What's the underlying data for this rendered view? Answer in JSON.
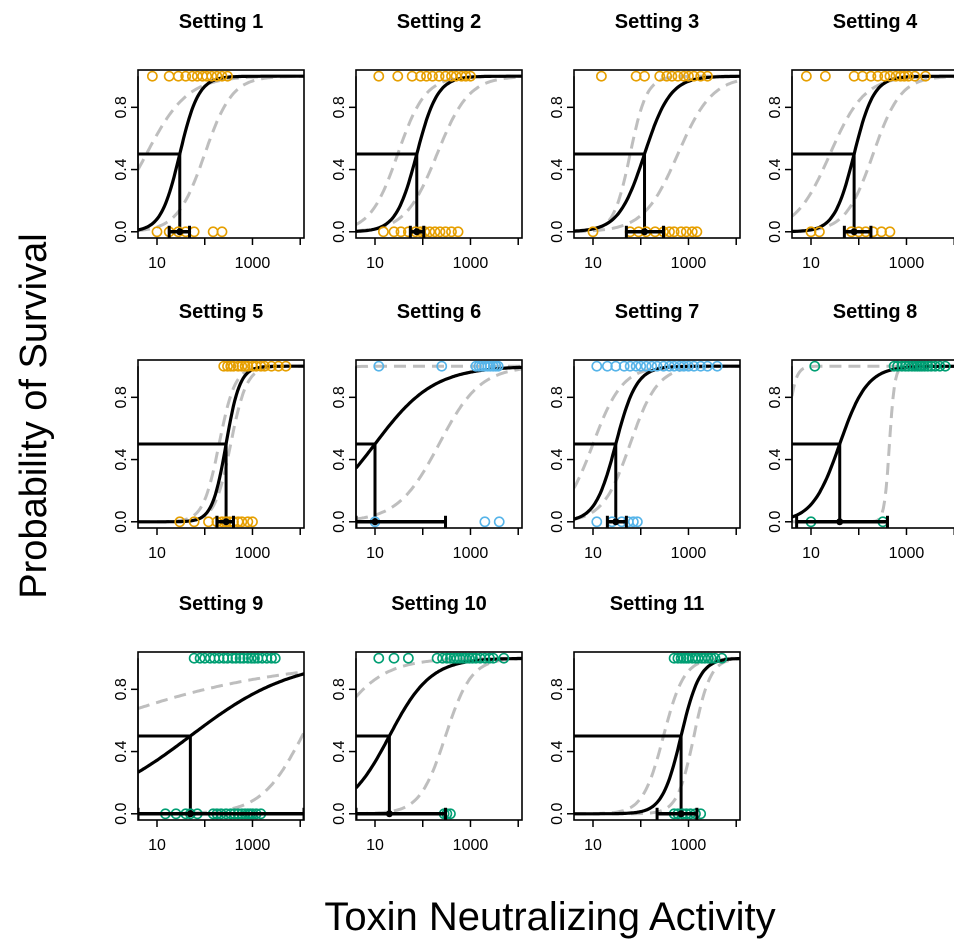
{
  "figure": {
    "ylabel": "Probability of Survival",
    "xlabel": "Toxin Neutralizing Activity"
  },
  "colors": {
    "orange": "#E69F00",
    "blue": "#56B4E9",
    "green": "#009E73",
    "fit": "#000000",
    "ci": "#BEBEBE"
  },
  "chart_data": {
    "type": "scatter",
    "x_scale": "log10",
    "xlim": [
      4,
      12000
    ],
    "ylim": [
      -0.04,
      1.04
    ],
    "x_ticks": [
      10,
      1000
    ],
    "x_tick_labels": [
      "10",
      "1000"
    ],
    "y_ticks": [
      0,
      0.4,
      0.8
    ],
    "y_tick_labels": [
      "0.0",
      "0.4",
      "0.8"
    ],
    "panels": [
      {
        "title": "Setting 1",
        "color": "orange",
        "fit": {
          "ld50": 30,
          "slope": 2.2
        },
        "ci_lower": {
          "ld50": 100,
          "slope": 1.5
        },
        "ci_upper": {
          "ld50": 6,
          "slope": 1.0
        },
        "ld50_ci": [
          18,
          48
        ],
        "survived_x": [
          8,
          18,
          28,
          40,
          55,
          70,
          90,
          110,
          140,
          180,
          230,
          300
        ],
        "died_x": [
          10,
          18,
          28,
          40,
          60,
          150,
          230
        ]
      },
      {
        "title": "Setting 2",
        "color": "orange",
        "fit": {
          "ld50": 75,
          "slope": 2.0
        },
        "ci_lower": {
          "ld50": 200,
          "slope": 1.3
        },
        "ci_upper": {
          "ld50": 30,
          "slope": 1.5
        },
        "ld50_ci": [
          55,
          105
        ],
        "survived_x": [
          12,
          30,
          60,
          90,
          120,
          160,
          220,
          300,
          400,
          500,
          650,
          800,
          1000
        ],
        "died_x": [
          15,
          25,
          35,
          50,
          70,
          90,
          110,
          140,
          180,
          230,
          300,
          400,
          550
        ]
      },
      {
        "title": "Setting 3",
        "color": "orange",
        "fit": {
          "ld50": 120,
          "slope": 1.6
        },
        "ci_lower": {
          "ld50": 600,
          "slope": 1.2
        },
        "ci_upper": {
          "ld50": 60,
          "slope": 2.5
        },
        "ld50_ci": [
          50,
          300
        ],
        "survived_x": [
          15,
          80,
          120,
          250,
          350,
          450,
          600,
          800,
          1000,
          1300,
          1800,
          2500
        ],
        "died_x": [
          10,
          60,
          90,
          130,
          200,
          300,
          400,
          500,
          700,
          900,
          1200,
          1500
        ]
      },
      {
        "title": "Setting 4",
        "color": "orange",
        "fit": {
          "ld50": 80,
          "slope": 2.1
        },
        "ci_lower": {
          "ld50": 200,
          "slope": 1.5
        },
        "ci_upper": {
          "ld50": 25,
          "slope": 1.2
        },
        "ld50_ci": [
          50,
          180
        ],
        "survived_x": [
          8,
          20,
          80,
          120,
          180,
          250,
          350,
          450,
          600,
          750,
          900,
          1100,
          1500,
          2500
        ],
        "died_x": [
          10,
          15,
          70,
          100,
          140,
          200,
          300,
          450
        ]
      },
      {
        "title": "Setting 5",
        "color": "orange",
        "fit": {
          "ld50": 280,
          "slope": 3.0
        },
        "ci_lower": {
          "ld50": 350,
          "slope": 2.6
        },
        "ci_upper": {
          "ld50": 200,
          "slope": 2.6
        },
        "ld50_ci": [
          180,
          400
        ],
        "survived_x": [
          250,
          300,
          350,
          400,
          500,
          600,
          700,
          800,
          1000,
          1200,
          1500,
          1800,
          2500,
          3500,
          5000
        ],
        "died_x": [
          30,
          60,
          120,
          180,
          230,
          280,
          330,
          400,
          500,
          600,
          800,
          1000
        ]
      },
      {
        "title": "Setting 6",
        "color": "blue",
        "fit": {
          "ld50": 10,
          "slope": 0.7
        },
        "ci_lower": {
          "ld50": 220,
          "slope": 1.0
        },
        "ci_upper": {
          "ld50": 0.2,
          "slope": 2.0
        },
        "ld50_ci": [
          4,
          300
        ],
        "survived_x": [
          12,
          250,
          1300,
          1500,
          1700,
          2000,
          2300,
          2600,
          3000,
          3400,
          3800
        ],
        "died_x": [
          10,
          2000,
          4000
        ]
      },
      {
        "title": "Setting 7",
        "color": "blue",
        "fit": {
          "ld50": 30,
          "slope": 2.0
        },
        "ci_lower": {
          "ld50": 60,
          "slope": 1.5
        },
        "ci_upper": {
          "ld50": 10,
          "slope": 1.4
        },
        "ld50_ci": [
          20,
          50
        ],
        "survived_x": [
          12,
          20,
          30,
          45,
          60,
          80,
          100,
          130,
          170,
          220,
          300,
          400,
          500,
          650,
          800,
          1000,
          1300,
          1800,
          2500,
          4000
        ],
        "died_x": [
          12,
          25,
          40,
          55,
          70,
          85
        ]
      },
      {
        "title": "Setting 8",
        "color": "green",
        "fit": {
          "ld50": 40,
          "slope": 1.5
        },
        "ci_lower": {
          "ld50": 440,
          "slope": 8.0
        },
        "ci_upper": {
          "ld50": 3,
          "slope": 5.0
        },
        "ld50_ci": [
          5,
          400
        ],
        "survived_x": [
          12,
          550,
          650,
          800,
          950,
          1100,
          1300,
          1500,
          1700,
          1900,
          2100,
          2400,
          2800,
          3300,
          4000,
          5000,
          6500
        ],
        "died_x": [
          10,
          320
        ]
      },
      {
        "title": "Setting 9",
        "color": "green",
        "fit": {
          "ld50": 50,
          "slope": 0.4
        },
        "ci_lower": {
          "ld50": 11000,
          "slope": 1.0
        },
        "ci_upper": {
          "ld50": 0.1,
          "slope": 0.2
        },
        "ld50_ci": [
          4,
          12000
        ],
        "survived_x": [
          60,
          80,
          100,
          130,
          160,
          200,
          250,
          300,
          380,
          450,
          550,
          650,
          800,
          950,
          1100,
          1300,
          1600,
          2000,
          2500,
          3000
        ],
        "died_x": [
          15,
          25,
          40,
          50,
          70,
          150,
          180,
          220,
          280,
          350,
          420,
          500,
          600,
          700,
          800,
          900,
          1000,
          1200,
          1500
        ]
      },
      {
        "title": "Setting 10",
        "color": "green",
        "fit": {
          "ld50": 20,
          "slope": 1.0
        },
        "ci_lower": {
          "ld50": 300,
          "slope": 1.6
        },
        "ci_upper": {
          "ld50": 1,
          "slope": 0.8
        },
        "ld50_ci": [
          4,
          300
        ],
        "survived_x": [
          12,
          25,
          50,
          200,
          260,
          320,
          380,
          450,
          520,
          600,
          700,
          800,
          950,
          1100,
          1300,
          1600,
          2000,
          2500,
          3000,
          5000
        ],
        "died_x": [
          280,
          320,
          380
        ]
      },
      {
        "title": "Setting 11",
        "color": "green",
        "fit": {
          "ld50": 700,
          "slope": 2.2
        },
        "ci_lower": {
          "ld50": 1300,
          "slope": 2.5
        },
        "ci_upper": {
          "ld50": 300,
          "slope": 2.0
        },
        "ld50_ci": [
          220,
          1500
        ],
        "survived_x": [
          500,
          600,
          700,
          800,
          900,
          1000,
          1200,
          1400,
          1600,
          1900,
          2200,
          2600,
          3000,
          3600,
          5000
        ],
        "died_x": [
          500,
          600,
          750,
          900,
          1100,
          1400,
          1800
        ]
      }
    ]
  }
}
